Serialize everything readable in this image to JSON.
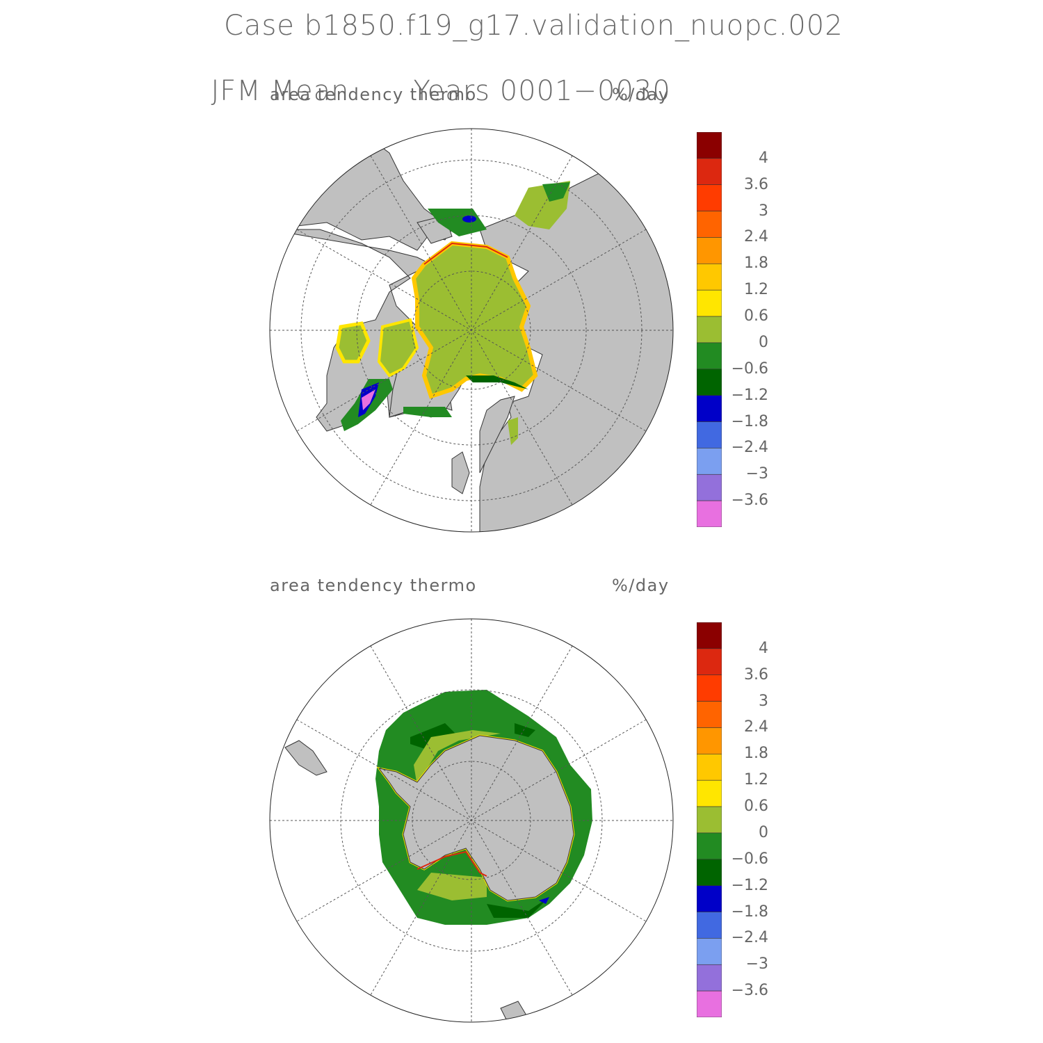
{
  "title": {
    "case": "Case b1850.f19_g17.validation_nuopc.002",
    "period": "JFM Mean",
    "years": "Years 0001−0030"
  },
  "panels": [
    {
      "hemisphere": "north",
      "variable": "area tendency thermo",
      "units": "%/day"
    },
    {
      "hemisphere": "south",
      "variable": "area tendency thermo",
      "units": "%/day"
    }
  ],
  "colorbar": {
    "colors": [
      "#8b0000",
      "#dc2810",
      "#ff3c00",
      "#ff6400",
      "#ff9600",
      "#ffc800",
      "#ffe600",
      "#9bbe32",
      "#228b22",
      "#006400",
      "#0000c8",
      "#4169e1",
      "#7b9ff0",
      "#9370db",
      "#e870e0"
    ],
    "labels": [
      "4",
      "3.6",
      "3",
      "2.4",
      "1.8",
      "1.2",
      "0.6",
      "0",
      "−0.6",
      "−1.2",
      "−1.8",
      "−2.4",
      "−3",
      "−3.6"
    ]
  },
  "map_colors": {
    "land": "#c0c0c0",
    "ocean": "#ffffff",
    "grid": "#555555"
  }
}
